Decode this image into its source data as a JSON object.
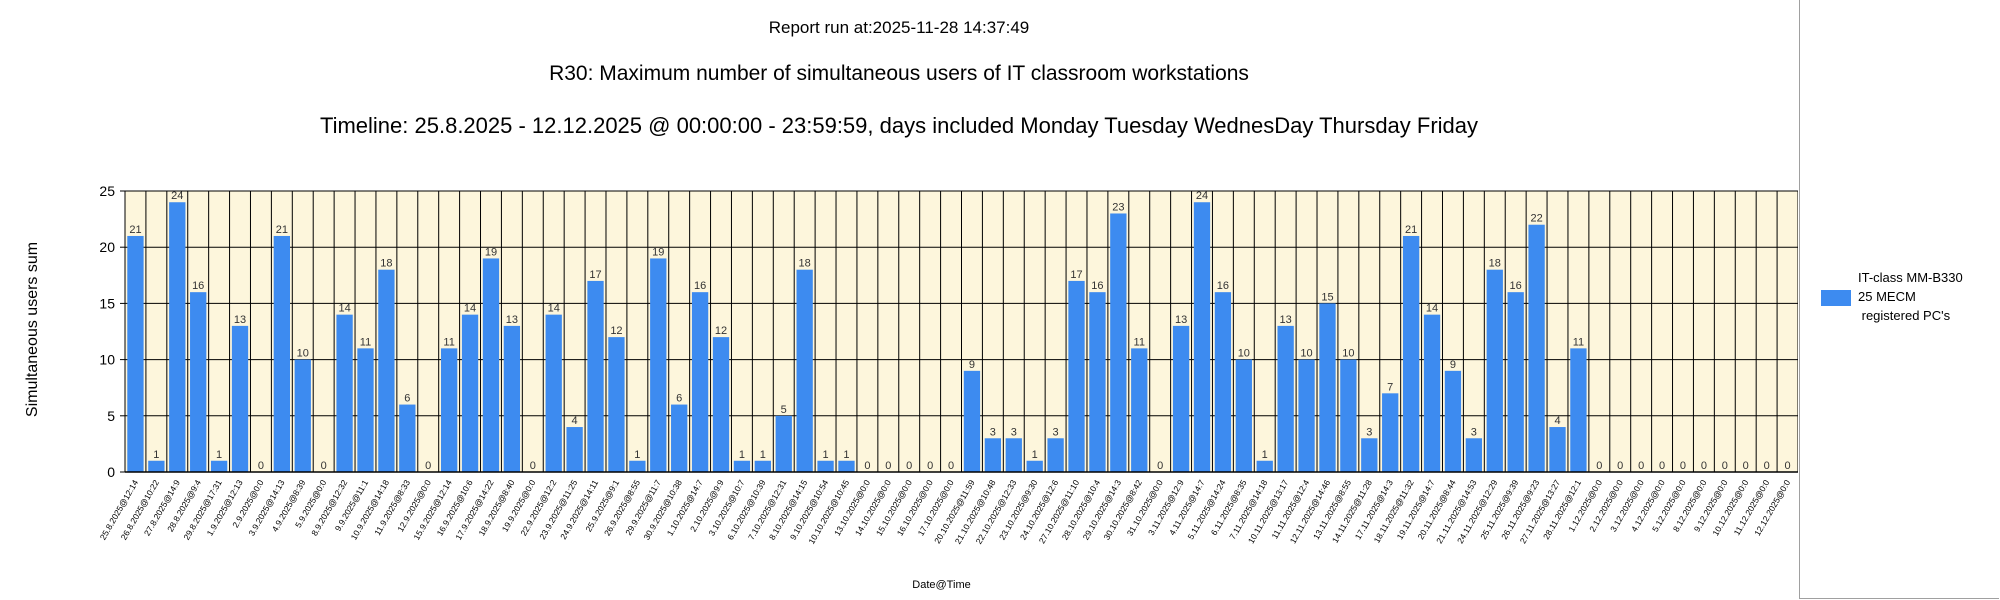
{
  "report_run": "Report run at:2025-11-28 14:37:49",
  "chart_data": {
    "type": "bar",
    "title": "R30: Maximum number of simultaneous users of IT classroom workstations",
    "subtitle": "Timeline: 25.8.2025  - 12.12.2025  @  00:00:00 -  23:59:59, days included Monday Tuesday WednesDay Thursday Friday",
    "xlabel": "Date@Time",
    "ylabel": "Simultaneous users sum",
    "ylim": [
      0,
      25
    ],
    "yticks": [
      0,
      5,
      10,
      15,
      20,
      25
    ],
    "grid": true,
    "legend_position": "right",
    "colors": {
      "bar": "#3d8bf0",
      "plot_bg": "#fdf6dc"
    },
    "categories": [
      "25.8.2025@12:14",
      "26.8.2025@10:22",
      "27.8.2025@14:9",
      "28.8.2025@9:4",
      "29.8.2025@17:31",
      "1.9.2025@12:13",
      "2.9.2025@0:0",
      "3.9.2025@14:13",
      "4.9.2025@8:39",
      "5.9.2025@0:0",
      "8.9.2025@12:32",
      "9.9.2025@11:1",
      "10.9.2025@14:18",
      "11.9.2025@8:33",
      "12.9.2025@0:0",
      "15.9.2025@12:14",
      "16.9.2025@10:6",
      "17.9.2025@14:22",
      "18.9.2025@8:40",
      "19.9.2025@0:0",
      "22.9.2025@12:2",
      "23.9.2025@11:25",
      "24.9.2025@14:11",
      "25.9.2025@9:1",
      "26.9.2025@8:55",
      "29.9.2025@11:7",
      "30.9.2025@10:38",
      "1.10.2025@14:7",
      "2.10.2025@9:9",
      "3.10.2025@10:7",
      "6.10.2025@10:39",
      "7.10.2025@12:31",
      "8.10.2025@14:15",
      "9.10.2025@10:54",
      "10.10.2025@10:45",
      "13.10.2025@0:0",
      "14.10.2025@0:0",
      "15.10.2025@0:0",
      "16.10.2025@0:0",
      "17.10.2025@0:0",
      "20.10.2025@11:59",
      "21.10.2025@10:48",
      "22.10.2025@12:33",
      "23.10.2025@9:30",
      "24.10.2025@12:6",
      "27.10.2025@11:10",
      "28.10.2025@10:4",
      "29.10.2025@14:3",
      "30.10.2025@8:42",
      "31.10.2025@0:0",
      "3.11.2025@12:9",
      "4.11.2025@14:7",
      "5.11.2025@14:24",
      "6.11.2025@8:35",
      "7.11.2025@14:18",
      "10.11.2025@13:17",
      "11.11.2025@12:4",
      "12.11.2025@14:46",
      "13.11.2025@8:55",
      "14.11.2025@11:28",
      "17.11.2025@14:3",
      "18.11.2025@11:32",
      "19.11.2025@14:7",
      "20.11.2025@8:44",
      "21.11.2025@14:53",
      "24.11.2025@12:29",
      "25.11.2025@9:39",
      "26.11.2025@9:23",
      "27.11.2025@13:27",
      "28.11.2025@12:1",
      "1.12.2025@0:0",
      "2.12.2025@0:0",
      "3.12.2025@0:0",
      "4.12.2025@0:0",
      "5.12.2025@0:0",
      "8.12.2025@0:0",
      "9.12.2025@0:0",
      "10.12.2025@0:0",
      "11.12.2025@0:0",
      "12.12.2025@0:0"
    ],
    "series": [
      {
        "name": "IT-class MM-B330\n25 MECM\n registered PC's",
        "values": [
          21,
          1,
          24,
          16,
          1,
          13,
          0,
          21,
          10,
          0,
          14,
          11,
          18,
          6,
          0,
          11,
          14,
          19,
          13,
          0,
          14,
          4,
          17,
          12,
          1,
          19,
          6,
          16,
          12,
          1,
          1,
          5,
          18,
          1,
          1,
          0,
          0,
          0,
          0,
          0,
          9,
          3,
          3,
          1,
          3,
          17,
          16,
          23,
          11,
          0,
          13,
          24,
          16,
          10,
          1,
          13,
          10,
          15,
          10,
          3,
          7,
          21,
          14,
          9,
          3,
          18,
          16,
          22,
          4,
          11,
          0,
          0,
          0,
          0,
          0,
          0,
          0,
          0,
          0,
          0
        ]
      }
    ]
  }
}
